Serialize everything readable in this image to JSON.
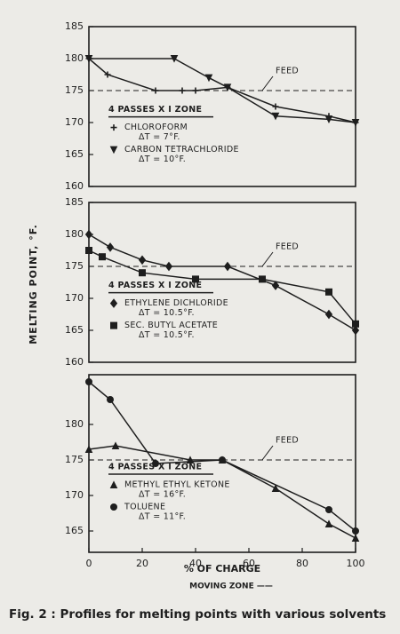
{
  "chart_data": [
    {
      "type": "line",
      "xlim": [
        0,
        100
      ],
      "ylim": [
        160,
        185
      ],
      "yticks": [
        160,
        165,
        170,
        175,
        180,
        185
      ],
      "reference_line": {
        "value": 175,
        "label": "FEED"
      },
      "legend_title": "4 PASSES X I ZONE",
      "series": [
        {
          "name": "CHLOROFORM",
          "note": "ΔT = 7°F.",
          "marker": "plus",
          "color": "#1e1e1e",
          "x": [
            0,
            7,
            25,
            35,
            40,
            52,
            70,
            90,
            100
          ],
          "values": [
            180,
            177.5,
            175,
            175,
            175,
            175.5,
            172.5,
            171,
            170
          ]
        },
        {
          "name": "CARBON TETRACHLORIDE",
          "note": "ΔT = 10°F.",
          "marker": "triangle-down",
          "color": "#1e1e1e",
          "x": [
            0,
            32,
            45,
            52,
            70,
            90,
            100
          ],
          "values": [
            180,
            180,
            177,
            175.5,
            171,
            170.5,
            170
          ]
        }
      ]
    },
    {
      "type": "line",
      "xlim": [
        0,
        100
      ],
      "ylim": [
        160,
        185
      ],
      "yticks": [
        160,
        165,
        170,
        175,
        180,
        185
      ],
      "reference_line": {
        "value": 175,
        "label": "FEED"
      },
      "legend_title": "4 PASSES X I ZONE",
      "series": [
        {
          "name": "ETHYLENE DICHLORIDE",
          "note": "ΔT = 10.5°F.",
          "marker": "diamond",
          "color": "#1e1e1e",
          "x": [
            0,
            8,
            20,
            30,
            52,
            70,
            90,
            100
          ],
          "values": [
            180,
            178,
            176,
            175,
            175,
            172,
            167.5,
            165
          ]
        },
        {
          "name": "SEC. BUTYL ACETATE",
          "note": "ΔT = 10.5°F.",
          "marker": "square",
          "color": "#1e1e1e",
          "x": [
            0,
            5,
            20,
            40,
            65,
            90,
            100
          ],
          "values": [
            177.5,
            176.5,
            174,
            173,
            173,
            171,
            166
          ]
        }
      ]
    },
    {
      "type": "line",
      "xlim": [
        0,
        100
      ],
      "ylim": [
        162,
        187
      ],
      "yticks": [
        165,
        170,
        175,
        180
      ],
      "xticks": [
        0,
        20,
        40,
        60,
        80,
        100
      ],
      "reference_line": {
        "value": 175,
        "label": "FEED"
      },
      "legend_title": "4 PASSES X I ZONE",
      "series": [
        {
          "name": "METHYL ETHYL KETONE",
          "note": "ΔT = 16°F.",
          "marker": "triangle",
          "color": "#1e1e1e",
          "x": [
            0,
            10,
            38,
            50,
            70,
            90,
            100
          ],
          "values": [
            176.5,
            177,
            175,
            175,
            171,
            166,
            164
          ]
        },
        {
          "name": "TOLUENE",
          "note": "ΔT = 11°F.",
          "marker": "circle",
          "color": "#1e1e1e",
          "x": [
            0,
            8,
            25,
            50,
            90,
            100
          ],
          "values": [
            186,
            183.5,
            174.5,
            175,
            168,
            165
          ]
        }
      ]
    }
  ],
  "y_label": "MELTING POINT, °F.",
  "x_label": "% OF CHARGE",
  "x_sublabel": "MOVING ZONE ——",
  "caption": "Fig. 2 : Profiles for melting points with various solvents"
}
